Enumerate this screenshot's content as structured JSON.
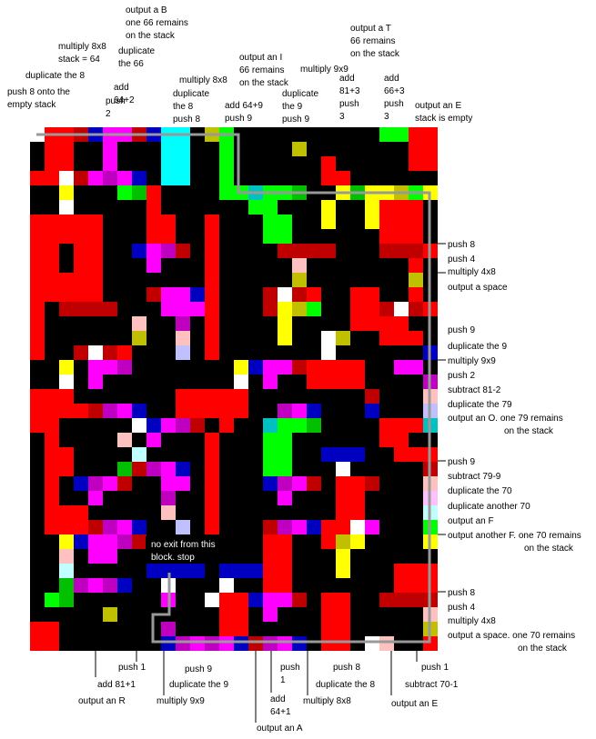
{
  "annotations": [
    {
      "lines": [
        "push 8 onto the",
        "empty stack"
      ]
    },
    {
      "lines": [
        "duplicate the 8"
      ]
    },
    {
      "lines": [
        "multiply 8x8",
        "stack = 64"
      ]
    },
    {
      "lines": [
        "output a B",
        "one 66 remains",
        "on the stack"
      ]
    },
    {
      "lines": [
        "duplicate",
        "the 66"
      ]
    },
    {
      "lines": [
        "add",
        "64+2"
      ]
    },
    {
      "lines": [
        "push",
        "2"
      ]
    },
    {
      "lines": [
        "multiply 8x8"
      ]
    },
    {
      "lines": [
        "duplicate",
        "the 8",
        "push 8"
      ]
    },
    {
      "lines": [
        "add 64+9",
        "push 9"
      ]
    },
    {
      "lines": [
        "output an I",
        "66 remains",
        "on the stack"
      ]
    },
    {
      "lines": [
        "multiply 9x9"
      ]
    },
    {
      "lines": [
        "duplicate",
        "the 9",
        "push 9"
      ]
    },
    {
      "lines": [
        "add",
        "81+3",
        "push",
        "3"
      ]
    },
    {
      "lines": [
        "output a T",
        "66 remains",
        "on the stack"
      ]
    },
    {
      "lines": [
        "add",
        "66+3",
        "push",
        "3"
      ]
    },
    {
      "lines": [
        "output an E",
        "stack is empty"
      ]
    },
    {
      "lines": [
        "push 8"
      ]
    },
    {
      "lines": [
        "push 4"
      ]
    },
    {
      "lines": [
        "multiply 4x8"
      ]
    },
    {
      "lines": [
        "output a space"
      ]
    },
    {
      "lines": [
        "push 9"
      ]
    },
    {
      "lines": [
        "duplicate the 9"
      ]
    },
    {
      "lines": [
        "multiply 9x9"
      ]
    },
    {
      "lines": [
        "push 2"
      ]
    },
    {
      "lines": [
        "subtract 81-2"
      ]
    },
    {
      "lines": [
        "duplicate the 79"
      ]
    },
    {
      "lines": [
        "output an O. one 79 remains",
        "on the stack"
      ]
    },
    {
      "lines": [
        "push 9"
      ]
    },
    {
      "lines": [
        "subtract 79-9"
      ]
    },
    {
      "lines": [
        "duplicate the 70"
      ]
    },
    {
      "lines": [
        "duplicate another 70"
      ]
    },
    {
      "lines": [
        "output an F"
      ]
    },
    {
      "lines": [
        "output another F. one 70 remains",
        "on the stack"
      ]
    },
    {
      "lines": [
        "push 8"
      ]
    },
    {
      "lines": [
        "push 4"
      ]
    },
    {
      "lines": [
        "multiply 4x8"
      ]
    },
    {
      "lines": [
        "output a space. one 70 remains",
        "on the stack"
      ]
    },
    {
      "lines": [
        "push 1"
      ]
    },
    {
      "lines": [
        "subtract 70-1"
      ]
    },
    {
      "lines": [
        "output an E"
      ]
    },
    {
      "lines": [
        "push 1"
      ]
    },
    {
      "lines": [
        "add 81+1"
      ]
    },
    {
      "lines": [
        "output an R"
      ]
    },
    {
      "lines": [
        "push 9"
      ]
    },
    {
      "lines": [
        "duplicate the 9"
      ]
    },
    {
      "lines": [
        "multiply 9x9"
      ]
    },
    {
      "lines": [
        "push",
        "1"
      ]
    },
    {
      "lines": [
        "add",
        "64+1"
      ]
    },
    {
      "lines": [
        "output an A"
      ]
    },
    {
      "lines": [
        "multiply 8x8"
      ]
    },
    {
      "lines": [
        "push 8"
      ]
    },
    {
      "lines": [
        "duplicate the 8"
      ]
    },
    {
      "lines": [
        "no exit from this",
        "block. stop"
      ]
    }
  ]
}
